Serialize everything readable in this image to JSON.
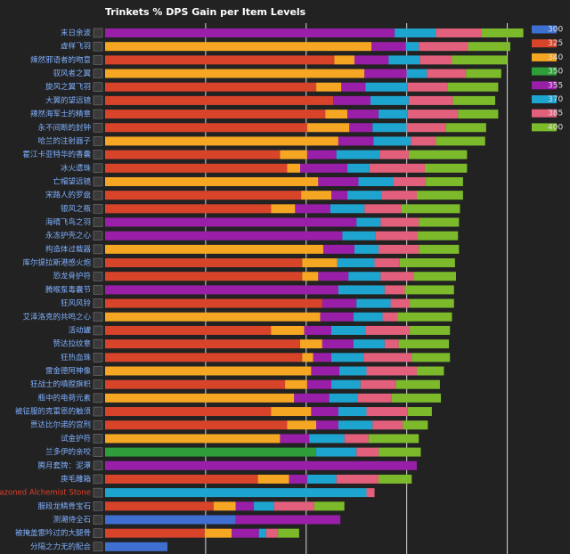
{
  "chart_data": {
    "type": "stacked-barh",
    "title": "Trinkets % DPS Gain per Item Levels",
    "categories": [
      "末日余波",
      "虚样飞羽",
      "辣然邪语者的吻意",
      "驭风者之翼",
      "旋风之翼飞羽",
      "大翼的望远镜",
      "辣然海军士的精章",
      "永不间断的封钟",
      "哈兰的注射器子",
      "霍江卡亚特华的香囊",
      "冰火遗珠",
      "亡帽望远镜",
      "宋路人的罗盘",
      "银风之瓶",
      "海晴飞鸟之羽",
      "永冻护壳之心",
      "构造体过载器",
      "库尔提拉斯港感火炮",
      "恐龙骨护符",
      "腾喉泵毒囊节",
      "狂风风铃",
      "艾泽洛克的共鸣之心",
      "活动罐",
      "赞达拉纹章",
      "狂热血珠",
      "雷金德阿神像",
      "狂战士的嗔膛旗帜",
      "瓶中的电荷元素",
      "被征服的克雷恩的触须",
      "贾达比尔诺的宫刑",
      "试金护符",
      "兰多伊的亲咬",
      "腾月套牌：泥潭",
      "庚毛雕箱",
      "Emblazoned Alchemist Stone",
      "服段龙鳞骨宝石",
      "测潮侍全石",
      "被掩盖雷吟过的大腿骨",
      "分隔之力无的配合"
    ],
    "category_colors": [
      "#7fb0ff",
      "#7fb0ff",
      "#7fb0ff",
      "#7fb0ff",
      "#7fb0ff",
      "#7fb0ff",
      "#7fb0ff",
      "#7fb0ff",
      "#7fb0ff",
      "#7fb0ff",
      "#7fb0ff",
      "#7fb0ff",
      "#7fb0ff",
      "#7fb0ff",
      "#7fb0ff",
      "#7fb0ff",
      "#7fb0ff",
      "#7fb0ff",
      "#7fb0ff",
      "#7fb0ff",
      "#7fb0ff",
      "#7fb0ff",
      "#7fb0ff",
      "#7fb0ff",
      "#7fb0ff",
      "#7fb0ff",
      "#7fb0ff",
      "#7fb0ff",
      "#7fb0ff",
      "#7fb0ff",
      "#7fb0ff",
      "#7fb0ff",
      "#7fb0ff",
      "#7fb0ff",
      "#e0402a",
      "#7fb0ff",
      "#7fb0ff",
      "#7fb0ff",
      "#7fb0ff"
    ],
    "series": [
      {
        "name": "300",
        "color": "#3f6fd0",
        "values": [
          null,
          null,
          null,
          null,
          null,
          null,
          null,
          null,
          null,
          null,
          null,
          null,
          null,
          null,
          null,
          null,
          null,
          null,
          null,
          null,
          null,
          null,
          null,
          null,
          null,
          null,
          null,
          null,
          null,
          null,
          null,
          null,
          null,
          null,
          null,
          null,
          1.3,
          null,
          0.62
        ]
      },
      {
        "name": "325",
        "color": "#d8442a",
        "values": [
          null,
          null,
          2.28,
          null,
          2.1,
          2.27,
          2.19,
          2.01,
          null,
          1.74,
          1.81,
          null,
          1.95,
          1.65,
          null,
          null,
          null,
          1.96,
          1.96,
          null,
          2.16,
          null,
          1.65,
          1.94,
          1.96,
          null,
          1.79,
          null,
          1.65,
          1.81,
          null,
          null,
          null,
          1.52,
          null,
          1.08,
          null,
          0.99,
          null
        ]
      },
      {
        "name": "340",
        "color": "#f5a623",
        "values": [
          null,
          2.65,
          0.2,
          2.58,
          0.25,
          null,
          0.22,
          0.42,
          2.32,
          0.27,
          0.13,
          2.12,
          0.3,
          0.24,
          null,
          null,
          2.17,
          0.35,
          0.16,
          null,
          null,
          2.14,
          0.33,
          0.22,
          0.11,
          2.05,
          0.22,
          1.88,
          0.4,
          0.29,
          1.74,
          null,
          null,
          0.31,
          null,
          0.22,
          null,
          0.27,
          null
        ]
      },
      {
        "name": "350",
        "color": "#2e9e3a",
        "values": [
          null,
          null,
          null,
          null,
          null,
          null,
          null,
          null,
          null,
          null,
          null,
          null,
          null,
          null,
          null,
          null,
          null,
          null,
          null,
          null,
          null,
          null,
          null,
          null,
          null,
          null,
          null,
          null,
          null,
          null,
          null,
          2.1,
          null,
          null,
          null,
          null,
          null,
          null,
          null
        ]
      },
      {
        "name": "355",
        "color": "#9a1fa8",
        "values": [
          2.88,
          0.34,
          0.34,
          0.42,
          0.24,
          0.37,
          0.31,
          0.23,
          0.35,
          0.29,
          0.47,
          0.4,
          0.16,
          0.35,
          2.5,
          2.36,
          0.31,
          null,
          0.3,
          2.32,
          0.34,
          0.33,
          0.27,
          0.31,
          0.18,
          0.28,
          0.24,
          0.35,
          0.27,
          0.22,
          0.29,
          null,
          3.1,
          0.18,
          null,
          0.18,
          1.04,
          0.27,
          null
        ]
      },
      {
        "name": "370",
        "color": "#1ea5cf",
        "values": [
          0.41,
          0.13,
          0.31,
          0.2,
          0.42,
          0.38,
          0.29,
          0.34,
          0.37,
          0.43,
          0.22,
          0.35,
          0.34,
          0.34,
          0.24,
          0.33,
          0.24,
          0.37,
          0.32,
          0.46,
          0.34,
          0.29,
          0.34,
          0.31,
          0.32,
          0.27,
          0.29,
          0.28,
          0.28,
          0.34,
          0.35,
          0.4,
          null,
          0.29,
          2.6,
          0.2,
          null,
          0.07,
          null
        ]
      },
      {
        "name": "385",
        "color": "#e2607c",
        "values": [
          0.45,
          0.49,
          0.32,
          0.39,
          0.4,
          0.44,
          0.5,
          0.39,
          0.25,
          0.29,
          0.55,
          0.32,
          0.35,
          0.37,
          0.38,
          0.42,
          0.4,
          0.25,
          0.33,
          0.2,
          0.19,
          0.15,
          0.44,
          0.14,
          0.48,
          0.5,
          0.35,
          0.34,
          0.41,
          0.3,
          0.24,
          0.22,
          null,
          0.42,
          0.08,
          0.4,
          null,
          0.12,
          null
        ]
      },
      {
        "name": "400",
        "color": "#7cba2c",
        "values": [
          0.42,
          0.42,
          0.55,
          0.35,
          0.5,
          0.42,
          0.4,
          0.4,
          0.49,
          0.58,
          0.42,
          0.37,
          0.46,
          0.58,
          0.4,
          0.4,
          0.4,
          0.55,
          0.42,
          0.49,
          0.44,
          0.54,
          0.4,
          0.5,
          0.38,
          0.27,
          0.44,
          0.49,
          0.24,
          0.25,
          0.5,
          0.42,
          null,
          0.33,
          null,
          0.3,
          null,
          0.21,
          null
        ]
      }
    ],
    "xlim": [
      0,
      4.5
    ],
    "xticks": [
      1,
      2,
      3,
      4
    ],
    "grid": true,
    "legend": "right"
  }
}
